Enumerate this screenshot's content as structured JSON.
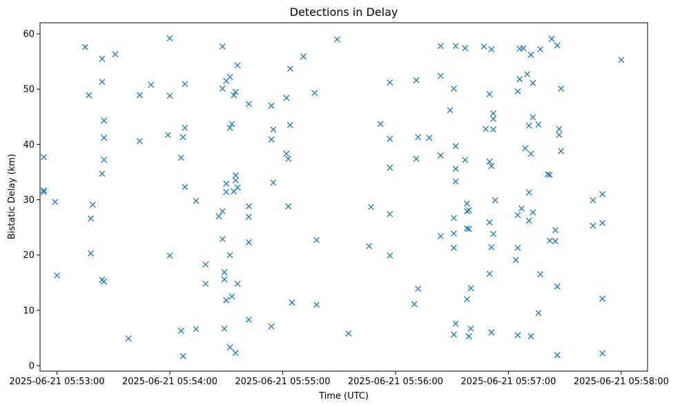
{
  "chart_data": {
    "type": "scatter",
    "title": "Detections in Delay",
    "xlabel": "Time (UTC)",
    "ylabel": "Bistatic Delay (km)",
    "marker": "x",
    "color": "#1f77b4",
    "grid": false,
    "xlim": [
      "2025-06-21 05:52:51",
      "2025-06-21 05:58:14"
    ],
    "ylim": [
      -1,
      62
    ],
    "xticks": [
      "2025-06-21 05:53:00",
      "2025-06-21 05:54:00",
      "2025-06-21 05:55:00",
      "2025-06-21 05:56:00",
      "2025-06-21 05:57:00",
      "2025-06-21 05:58:00"
    ],
    "yticks": [
      0,
      10,
      20,
      30,
      40,
      50,
      60
    ],
    "points": [
      [
        "2025-06-21 05:52:53",
        37.7
      ],
      [
        "2025-06-21 05:52:53",
        31.7
      ],
      [
        "2025-06-21 05:52:53",
        31.4
      ],
      [
        "2025-06-21 05:52:59",
        29.6
      ],
      [
        "2025-06-21 05:53:00",
        16.3
      ],
      [
        "2025-06-21 05:53:15",
        57.6
      ],
      [
        "2025-06-21 05:53:17",
        48.9
      ],
      [
        "2025-06-21 05:53:18",
        26.6
      ],
      [
        "2025-06-21 05:53:18",
        20.3
      ],
      [
        "2025-06-21 05:53:19",
        29.1
      ],
      [
        "2025-06-21 05:53:24",
        55.5
      ],
      [
        "2025-06-21 05:53:24",
        51.3
      ],
      [
        "2025-06-21 05:53:24",
        34.7
      ],
      [
        "2025-06-21 05:53:24",
        15.5
      ],
      [
        "2025-06-21 05:53:25",
        44.3
      ],
      [
        "2025-06-21 05:53:25",
        41.2
      ],
      [
        "2025-06-21 05:53:25",
        37.2
      ],
      [
        "2025-06-21 05:53:25",
        15.2
      ],
      [
        "2025-06-21 05:53:31",
        56.3
      ],
      [
        "2025-06-21 05:53:38",
        4.9
      ],
      [
        "2025-06-21 05:53:44",
        48.9
      ],
      [
        "2025-06-21 05:53:44",
        40.6
      ],
      [
        "2025-06-21 05:53:50",
        50.8
      ],
      [
        "2025-06-21 05:54:00",
        59.2
      ],
      [
        "2025-06-21 05:54:00",
        48.8
      ],
      [
        "2025-06-21 05:53:59",
        41.7
      ],
      [
        "2025-06-21 05:54:00",
        19.9
      ],
      [
        "2025-06-21 05:54:06",
        37.6
      ],
      [
        "2025-06-21 05:54:06",
        6.3
      ],
      [
        "2025-06-21 05:54:07",
        41.3
      ],
      [
        "2025-06-21 05:54:07",
        1.7
      ],
      [
        "2025-06-21 05:54:08",
        50.9
      ],
      [
        "2025-06-21 05:54:08",
        43.0
      ],
      [
        "2025-06-21 05:54:08",
        32.3
      ],
      [
        "2025-06-21 05:54:14",
        29.8
      ],
      [
        "2025-06-21 05:54:14",
        6.6
      ],
      [
        "2025-06-21 05:54:19",
        18.3
      ],
      [
        "2025-06-21 05:54:19",
        14.8
      ],
      [
        "2025-06-21 05:54:26",
        27.0
      ],
      [
        "2025-06-21 05:54:28",
        57.7
      ],
      [
        "2025-06-21 05:54:28",
        50.1
      ],
      [
        "2025-06-21 05:54:28",
        27.9
      ],
      [
        "2025-06-21 05:54:28",
        22.9
      ],
      [
        "2025-06-21 05:54:29",
        16.9
      ],
      [
        "2025-06-21 05:54:29",
        15.6
      ],
      [
        "2025-06-21 05:54:29",
        6.7
      ],
      [
        "2025-06-21 05:54:30",
        51.5
      ],
      [
        "2025-06-21 05:54:30",
        31.4
      ],
      [
        "2025-06-21 05:54:30",
        32.9
      ],
      [
        "2025-06-21 05:54:30",
        11.8
      ],
      [
        "2025-06-21 05:54:32",
        52.2
      ],
      [
        "2025-06-21 05:54:32",
        43.0
      ],
      [
        "2025-06-21 05:54:32",
        20.0
      ],
      [
        "2025-06-21 05:54:32",
        3.3
      ],
      [
        "2025-06-21 05:54:33",
        43.7
      ],
      [
        "2025-06-21 05:54:33",
        12.5
      ],
      [
        "2025-06-21 05:54:34",
        48.9
      ],
      [
        "2025-06-21 05:54:34",
        31.5
      ],
      [
        "2025-06-21 05:54:35",
        49.5
      ],
      [
        "2025-06-21 05:54:35",
        34.4
      ],
      [
        "2025-06-21 05:54:35",
        33.5
      ],
      [
        "2025-06-21 05:54:35",
        2.3
      ],
      [
        "2025-06-21 05:54:36",
        54.3
      ],
      [
        "2025-06-21 05:54:36",
        32.2
      ],
      [
        "2025-06-21 05:54:36",
        14.8
      ],
      [
        "2025-06-21 05:54:42",
        47.3
      ],
      [
        "2025-06-21 05:54:42",
        28.8
      ],
      [
        "2025-06-21 05:54:42",
        26.9
      ],
      [
        "2025-06-21 05:54:42",
        22.3
      ],
      [
        "2025-06-21 05:54:42",
        8.3
      ],
      [
        "2025-06-21 05:54:54",
        47.0
      ],
      [
        "2025-06-21 05:54:55",
        42.7
      ],
      [
        "2025-06-21 05:54:54",
        40.9
      ],
      [
        "2025-06-21 05:54:55",
        33.1
      ],
      [
        "2025-06-21 05:54:54",
        7.1
      ],
      [
        "2025-06-21 05:55:02",
        48.4
      ],
      [
        "2025-06-21 05:55:02",
        38.3
      ],
      [
        "2025-06-21 05:55:03",
        37.4
      ],
      [
        "2025-06-21 05:55:03",
        28.8
      ],
      [
        "2025-06-21 05:55:04",
        53.7
      ],
      [
        "2025-06-21 05:55:04",
        43.5
      ],
      [
        "2025-06-21 05:55:05",
        11.4
      ],
      [
        "2025-06-21 05:55:11",
        55.9
      ],
      [
        "2025-06-21 05:55:17",
        49.3
      ],
      [
        "2025-06-21 05:55:18",
        22.7
      ],
      [
        "2025-06-21 05:55:18",
        11.0
      ],
      [
        "2025-06-21 05:55:29",
        59.0
      ],
      [
        "2025-06-21 05:55:35",
        5.8
      ],
      [
        "2025-06-21 05:55:47",
        28.7
      ],
      [
        "2025-06-21 05:55:46",
        21.6
      ],
      [
        "2025-06-21 05:55:52",
        43.7
      ],
      [
        "2025-06-21 05:55:57",
        51.2
      ],
      [
        "2025-06-21 05:55:57",
        41.0
      ],
      [
        "2025-06-21 05:55:57",
        35.8
      ],
      [
        "2025-06-21 05:55:57",
        27.4
      ],
      [
        "2025-06-21 05:55:57",
        19.9
      ],
      [
        "2025-06-21 05:56:11",
        51.6
      ],
      [
        "2025-06-21 05:56:12",
        41.3
      ],
      [
        "2025-06-21 05:56:11",
        37.4
      ],
      [
        "2025-06-21 05:56:12",
        13.9
      ],
      [
        "2025-06-21 05:56:10",
        11.1
      ],
      [
        "2025-06-21 05:56:18",
        41.2
      ],
      [
        "2025-06-21 05:56:24",
        57.8
      ],
      [
        "2025-06-21 05:56:24",
        52.4
      ],
      [
        "2025-06-21 05:56:24",
        38.0
      ],
      [
        "2025-06-21 05:56:24",
        23.4
      ],
      [
        "2025-06-21 05:56:29",
        46.2
      ],
      [
        "2025-06-21 05:56:31",
        50.1
      ],
      [
        "2025-06-21 05:56:31",
        21.3
      ],
      [
        "2025-06-21 05:56:31",
        26.7
      ],
      [
        "2025-06-21 05:56:31",
        23.9
      ],
      [
        "2025-06-21 05:56:31",
        5.6
      ],
      [
        "2025-06-21 05:56:32",
        57.8
      ],
      [
        "2025-06-21 05:56:32",
        39.7
      ],
      [
        "2025-06-21 05:56:32",
        35.6
      ],
      [
        "2025-06-21 05:56:32",
        33.3
      ],
      [
        "2025-06-21 05:56:32",
        7.6
      ],
      [
        "2025-06-21 05:56:37",
        57.4
      ],
      [
        "2025-06-21 05:56:37",
        37.2
      ],
      [
        "2025-06-21 05:56:38",
        29.3
      ],
      [
        "2025-06-21 05:56:38",
        27.9
      ],
      [
        "2025-06-21 05:56:38",
        24.8
      ],
      [
        "2025-06-21 05:56:38",
        12.0
      ],
      [
        "2025-06-21 05:56:39",
        28.1
      ],
      [
        "2025-06-21 05:56:39",
        24.7
      ],
      [
        "2025-06-21 05:56:39",
        5.3
      ],
      [
        "2025-06-21 05:56:40",
        14.0
      ],
      [
        "2025-06-21 05:56:40",
        6.7
      ],
      [
        "2025-06-21 05:56:47",
        57.7
      ],
      [
        "2025-06-21 05:56:48",
        42.8
      ],
      [
        "2025-06-21 05:56:50",
        49.1
      ],
      [
        "2025-06-21 05:56:50",
        36.9
      ],
      [
        "2025-06-21 05:56:50",
        25.9
      ],
      [
        "2025-06-21 05:56:50",
        16.6
      ],
      [
        "2025-06-21 05:56:51",
        57.2
      ],
      [
        "2025-06-21 05:56:51",
        36.1
      ],
      [
        "2025-06-21 05:56:51",
        21.4
      ],
      [
        "2025-06-21 05:56:51",
        6.0
      ],
      [
        "2025-06-21 05:56:52",
        45.6
      ],
      [
        "2025-06-21 05:56:52",
        44.6
      ],
      [
        "2025-06-21 05:56:52",
        42.7
      ],
      [
        "2025-06-21 05:56:52",
        23.8
      ],
      [
        "2025-06-21 05:56:53",
        29.9
      ],
      [
        "2025-06-21 05:57:05",
        49.6
      ],
      [
        "2025-06-21 05:57:05",
        27.2
      ],
      [
        "2025-06-21 05:57:04",
        19.1
      ],
      [
        "2025-06-21 05:57:05",
        21.3
      ],
      [
        "2025-06-21 05:57:05",
        5.5
      ],
      [
        "2025-06-21 05:57:06",
        57.3
      ],
      [
        "2025-06-21 05:57:06",
        51.8
      ],
      [
        "2025-06-21 05:57:07",
        28.4
      ],
      [
        "2025-06-21 05:57:08",
        57.4
      ],
      [
        "2025-06-21 05:57:09",
        39.3
      ],
      [
        "2025-06-21 05:57:10",
        52.7
      ],
      [
        "2025-06-21 05:57:11",
        43.4
      ],
      [
        "2025-06-21 05:57:11",
        31.3
      ],
      [
        "2025-06-21 05:57:11",
        26.2
      ],
      [
        "2025-06-21 05:57:12",
        56.2
      ],
      [
        "2025-06-21 05:57:12",
        38.3
      ],
      [
        "2025-06-21 05:57:12",
        5.3
      ],
      [
        "2025-06-21 05:57:13",
        51.1
      ],
      [
        "2025-06-21 05:57:13",
        44.9
      ],
      [
        "2025-06-21 05:57:13",
        27.7
      ],
      [
        "2025-06-21 05:57:17",
        57.2
      ],
      [
        "2025-06-21 05:57:16",
        43.6
      ],
      [
        "2025-06-21 05:57:17",
        16.5
      ],
      [
        "2025-06-21 05:57:16",
        9.5
      ],
      [
        "2025-06-21 05:57:21",
        34.6
      ],
      [
        "2025-06-21 05:57:22",
        34.5
      ],
      [
        "2025-06-21 05:57:22",
        22.6
      ],
      [
        "2025-06-21 05:57:23",
        59.1
      ],
      [
        "2025-06-21 05:57:25",
        24.5
      ],
      [
        "2025-06-21 05:57:25",
        22.5
      ],
      [
        "2025-06-21 05:57:26",
        57.9
      ],
      [
        "2025-06-21 05:57:26",
        14.3
      ],
      [
        "2025-06-21 05:57:26",
        1.9
      ],
      [
        "2025-06-21 05:57:27",
        42.8
      ],
      [
        "2025-06-21 05:57:27",
        41.7
      ],
      [
        "2025-06-21 05:57:28",
        50.1
      ],
      [
        "2025-06-21 05:57:28",
        38.8
      ],
      [
        "2025-06-21 05:57:45",
        29.9
      ],
      [
        "2025-06-21 05:57:45",
        25.3
      ],
      [
        "2025-06-21 05:57:50",
        31.0
      ],
      [
        "2025-06-21 05:57:50",
        25.8
      ],
      [
        "2025-06-21 05:57:50",
        12.1
      ],
      [
        "2025-06-21 05:57:50",
        2.2
      ],
      [
        "2025-06-21 05:58:00",
        55.3
      ]
    ]
  }
}
